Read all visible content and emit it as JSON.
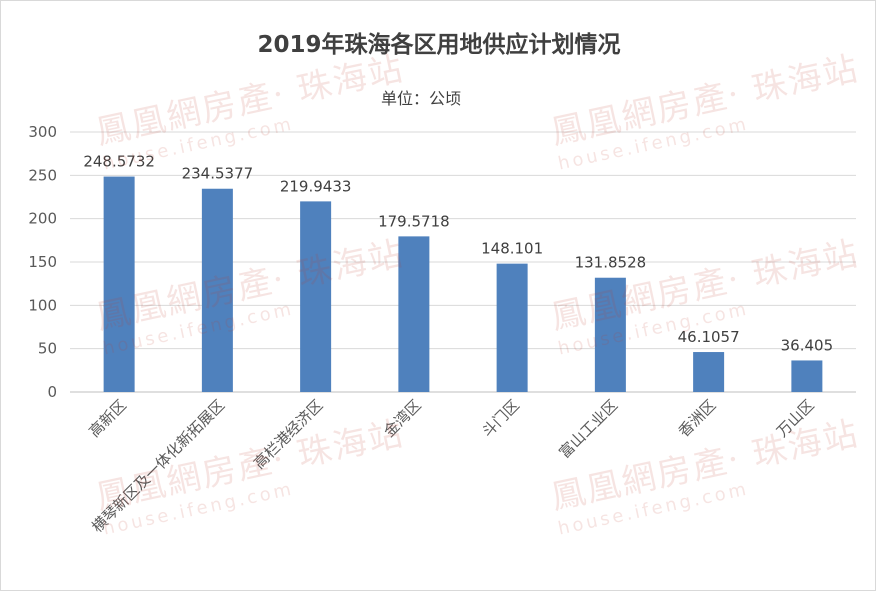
{
  "chart_data": {
    "type": "bar",
    "title": "2019年珠海各区用地供应计划情况",
    "subtitle": "单位：公顷",
    "categories": [
      "高新区",
      "横琴新区及一体化新拓展区",
      "高栏港经济区",
      "金湾区",
      "斗门区",
      "富山工业区",
      "香洲区",
      "万山区"
    ],
    "values": [
      248.5732,
      234.5377,
      219.9433,
      179.5718,
      148.101,
      131.8528,
      46.1057,
      36.405
    ],
    "value_labels": [
      "248.5732",
      "234.5377",
      "219.9433",
      "179.5718",
      "148.101",
      "131.8528",
      "46.1057",
      "36.405"
    ],
    "yticks": [
      0,
      50,
      100,
      150,
      200,
      250,
      300
    ],
    "ylim": [
      0,
      300
    ],
    "grid": true,
    "bar_color": "#4f81bd"
  },
  "watermark": {
    "main": "鳳凰網房產· 珠海站",
    "sub": "house.ifeng.com"
  }
}
